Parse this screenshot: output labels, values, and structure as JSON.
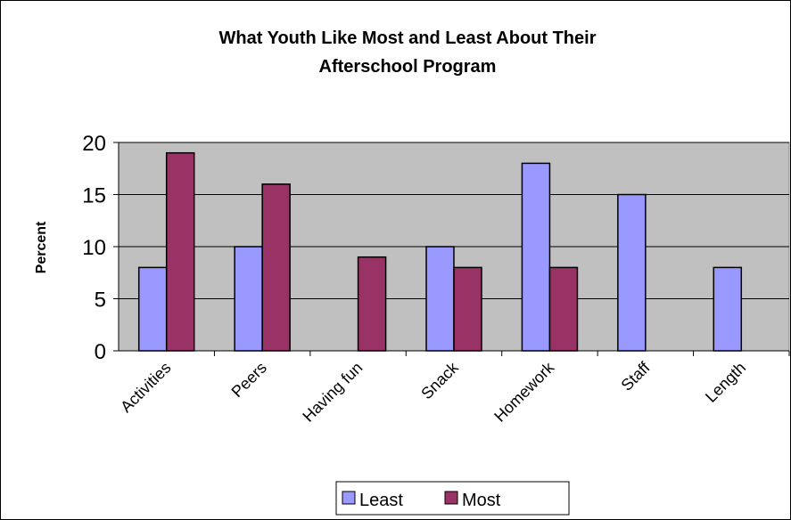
{
  "chart_data": {
    "type": "bar",
    "title_line1": "What Youth Like Most and Least About Their",
    "title_line2": "Afterschool Program",
    "ylabel": "Percent",
    "xlabel": "",
    "categories": [
      "Activities",
      "Peers",
      "Having fun",
      "Snack",
      "Homework",
      "Staff",
      "Length"
    ],
    "series": [
      {
        "name": "Least",
        "color": "#9999ff",
        "values": [
          8,
          10,
          0,
          10,
          18,
          15,
          8
        ]
      },
      {
        "name": "Most",
        "color": "#993366",
        "values": [
          19,
          16,
          9,
          8,
          8,
          0,
          0
        ]
      }
    ],
    "ylim": [
      0,
      20
    ],
    "yticks": [
      0,
      5,
      10,
      15,
      20
    ],
    "grid": true,
    "plot_background": "#c0c0c0",
    "legend_position": "bottom"
  }
}
